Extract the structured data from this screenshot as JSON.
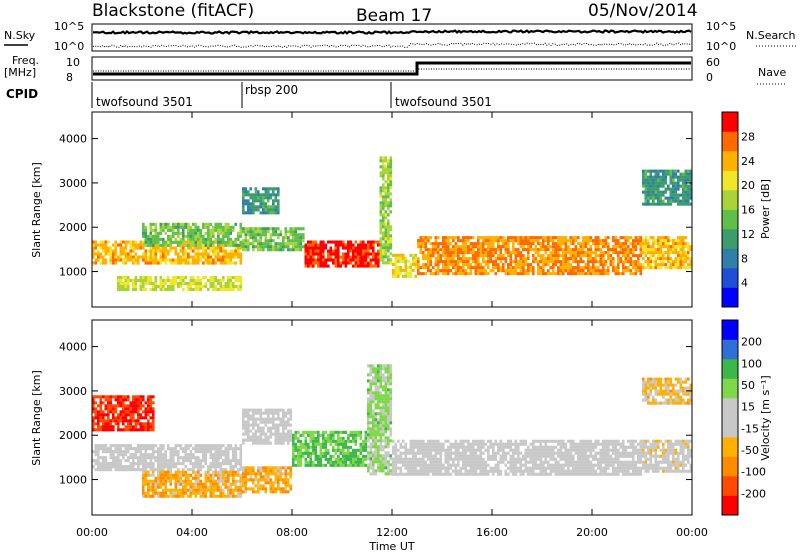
{
  "header": {
    "station": "Blackstone (fitACF)",
    "beam": "Beam 17",
    "date": "05/Nov/2014"
  },
  "noise_panel": {
    "left_label": "N.Sky",
    "right_label": "N.Search",
    "left_ticks": [
      "10^5",
      "10^0"
    ],
    "right_ticks": [
      "10^5",
      "10^0"
    ]
  },
  "freq_panel": {
    "left_label_line1": "Freq.",
    "left_label_line2": "[MHz]",
    "left_ticks": [
      "10",
      "8"
    ],
    "right_label": "Nave",
    "right_ticks": [
      "60",
      "0"
    ]
  },
  "cpid": {
    "label": "CPID",
    "segments": [
      {
        "name": "twofsound 3501",
        "start_hour": 0,
        "end_hour": 6
      },
      {
        "name": "rbsp 200",
        "start_hour": 6,
        "end_hour": 12
      },
      {
        "name": "twofsound 3501",
        "start_hour": 12,
        "end_hour": 24
      }
    ]
  },
  "x_axis": {
    "label": "Time UT",
    "ticks": [
      "00:00",
      "04:00",
      "08:00",
      "12:00",
      "16:00",
      "20:00",
      "00:00"
    ]
  },
  "colors": {
    "power": [
      "#0000ff",
      "#1e4fd6",
      "#2f7fa8",
      "#3c9c6c",
      "#5fbf4a",
      "#a8d43a",
      "#f0e62a",
      "#ffb000",
      "#ff6a00",
      "#ff0000"
    ],
    "velocity": [
      "#ff0000",
      "#ff4a00",
      "#ff8c00",
      "#ffb000",
      "#c8c8c8",
      "#c8c8c8",
      "#7fd84a",
      "#3cb84a",
      "#2f6fd6",
      "#0000ff"
    ]
  },
  "chart_data": [
    {
      "type": "heatmap",
      "title": "Power",
      "ylabel": "Slant Range [km]",
      "xlabel": "",
      "y_ticks": [
        1000,
        2000,
        3000,
        4000
      ],
      "ylim": [
        200,
        4600
      ],
      "xlim_hours": [
        0,
        24
      ],
      "colorbar": {
        "label": "Power [dB]",
        "ticks": [
          "28",
          "24",
          "20",
          "16",
          "12",
          "8",
          "4"
        ],
        "range": [
          0,
          30
        ]
      },
      "bands": [
        {
          "start_hour": 0.0,
          "end_hour": 6.0,
          "range_km": [
            1200,
            1700
          ],
          "value_db": 22
        },
        {
          "start_hour": 2.0,
          "end_hour": 6.0,
          "range_km": [
            1600,
            2100
          ],
          "value_db": 14
        },
        {
          "start_hour": 1.0,
          "end_hour": 6.0,
          "range_km": [
            600,
            900
          ],
          "value_db": 18
        },
        {
          "start_hour": 6.0,
          "end_hour": 8.5,
          "range_km": [
            1500,
            2000
          ],
          "value_db": 14
        },
        {
          "start_hour": 6.0,
          "end_hour": 7.5,
          "range_km": [
            2300,
            2900
          ],
          "value_db": 10
        },
        {
          "start_hour": 8.5,
          "end_hour": 11.5,
          "range_km": [
            1100,
            1700
          ],
          "value_db": 28
        },
        {
          "start_hour": 11.5,
          "end_hour": 12.0,
          "range_km": [
            1200,
            3600
          ],
          "value_db": 16
        },
        {
          "start_hour": 12.0,
          "end_hour": 13.0,
          "range_km": [
            900,
            1400
          ],
          "value_db": 20
        },
        {
          "start_hour": 13.0,
          "end_hour": 22.0,
          "range_km": [
            950,
            1800
          ],
          "value_db": 24
        },
        {
          "start_hour": 22.0,
          "end_hour": 24.0,
          "range_km": [
            1100,
            1800
          ],
          "value_db": 22
        },
        {
          "start_hour": 22.0,
          "end_hour": 24.0,
          "range_km": [
            2500,
            3300
          ],
          "value_db": 10
        }
      ]
    },
    {
      "type": "heatmap",
      "title": "Velocity",
      "ylabel": "Slant Range [km]",
      "xlabel": "Time UT",
      "y_ticks": [
        1000,
        2000,
        3000,
        4000
      ],
      "ylim": [
        200,
        4600
      ],
      "xlim_hours": [
        0,
        24
      ],
      "colorbar": {
        "label": "Velocity [m s⁻¹]",
        "ticks": [
          "200",
          "100",
          "50",
          "15",
          "-15",
          "-50",
          "-100",
          "-200"
        ],
        "range": [
          -250,
          250
        ]
      },
      "bands": [
        {
          "start_hour": 0.0,
          "end_hour": 2.5,
          "range_km": [
            2100,
            2900
          ],
          "value_ms": -200
        },
        {
          "start_hour": 0.0,
          "end_hour": 6.0,
          "range_km": [
            1200,
            1800
          ],
          "value_ms": 0
        },
        {
          "start_hour": 2.0,
          "end_hour": 6.0,
          "range_km": [
            600,
            1200
          ],
          "value_ms": -80
        },
        {
          "start_hour": 6.0,
          "end_hour": 8.0,
          "range_km": [
            1800,
            2600
          ],
          "value_ms": 0
        },
        {
          "start_hour": 6.0,
          "end_hour": 8.0,
          "range_km": [
            700,
            1300
          ],
          "value_ms": -80
        },
        {
          "start_hour": 8.0,
          "end_hour": 11.0,
          "range_km": [
            1300,
            2100
          ],
          "value_ms": 100
        },
        {
          "start_hour": 11.0,
          "end_hour": 12.0,
          "range_km": [
            1100,
            3600
          ],
          "value_ms": 60
        },
        {
          "start_hour": 12.0,
          "end_hour": 22.0,
          "range_km": [
            1100,
            1900
          ],
          "value_ms": 0
        },
        {
          "start_hour": 22.0,
          "end_hour": 24.0,
          "range_km": [
            1200,
            1900
          ],
          "value_ms": -20
        },
        {
          "start_hour": 22.0,
          "end_hour": 24.0,
          "range_km": [
            2700,
            3300
          ],
          "value_ms": -60
        }
      ]
    }
  ]
}
